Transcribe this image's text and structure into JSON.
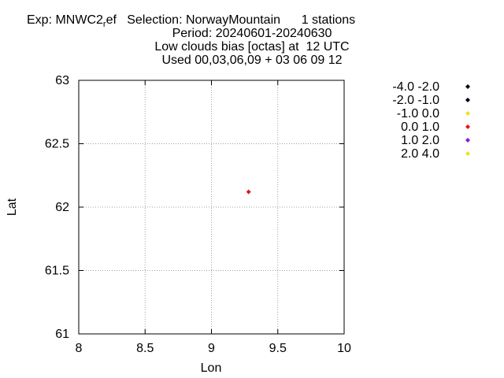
{
  "title": {
    "line1_prefix": "Exp: MNWC2",
    "line1_sub": "r",
    "line1_suffix": "ef   Selection: NorwayMountain      1 stations",
    "line2": "Period: 20240601-20240630",
    "line3": "Low clouds bias [octas] at  12 UTC",
    "line4": "Used 00,03,06,09 + 03 06 09 12"
  },
  "chart_data": {
    "type": "scatter",
    "xlabel": "Lon",
    "ylabel": "Lat",
    "xlim": [
      8,
      10
    ],
    "ylim": [
      61,
      63
    ],
    "xticks": [
      "8",
      "8.5",
      "9",
      "9.5",
      "10"
    ],
    "yticks": [
      "61",
      "61.5",
      "62",
      "62.5",
      "63"
    ],
    "grid": true,
    "legend_position": "right",
    "legend": [
      {
        "label": "-4.0 -2.0",
        "color": "#000000"
      },
      {
        "label": "-2.0 -1.0",
        "color": "#000000"
      },
      {
        "label": "-1.0 0.0",
        "color": "#f0e020"
      },
      {
        "label": "0.0 1.0",
        "color": "#e01818"
      },
      {
        "label": "1.0 2.0",
        "color": "#8a1ad0"
      },
      {
        "label": "2.0 4.0",
        "color": "#f0e020"
      }
    ],
    "points": [
      {
        "lon": 9.28,
        "lat": 62.12,
        "class": "0.0 1.0",
        "color": "#e01818"
      }
    ]
  }
}
